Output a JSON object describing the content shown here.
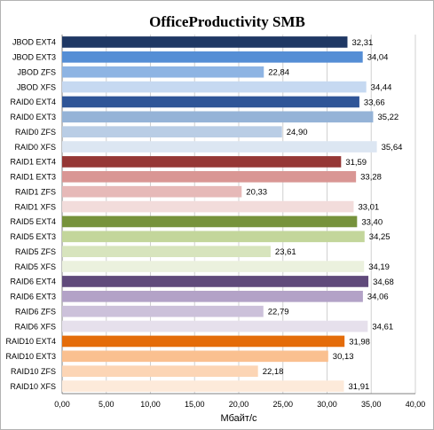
{
  "chart_data": {
    "type": "bar",
    "orientation": "horizontal",
    "title": "OfficeProductivity SMB",
    "xlabel": "Мбайт/с",
    "ylabel": "",
    "xlim": [
      0,
      40
    ],
    "x_ticks": [
      "0,00",
      "5,00",
      "10,00",
      "15,00",
      "20,00",
      "25,00",
      "30,00",
      "35,00",
      "40,00"
    ],
    "grid": true,
    "legend": "none",
    "categories": [
      "JBOD EXT4",
      "JBOD EXT3",
      "JBOD ZFS",
      "JBOD XFS",
      "RAID0 EXT4",
      "RAID0 EXT3",
      "RAID0 ZFS",
      "RAID0 XFS",
      "RAID1 EXT4",
      "RAID1 EXT3",
      "RAID1 ZFS",
      "RAID1 XFS",
      "RAID5 EXT4",
      "RAID5 EXT3",
      "RAID5 ZFS",
      "RAID5 XFS",
      "RAID6 EXT4",
      "RAID6 EXT3",
      "RAID6 ZFS",
      "RAID6 XFS",
      "RAID10 EXT4",
      "RAID10 EXT3",
      "RAID10 ZFS",
      "RAID10 XFS"
    ],
    "values": [
      32.31,
      34.04,
      22.84,
      34.44,
      33.66,
      35.22,
      24.9,
      35.64,
      31.59,
      33.28,
      20.33,
      33.01,
      33.4,
      34.25,
      23.61,
      34.19,
      34.68,
      34.06,
      22.79,
      34.61,
      31.98,
      30.13,
      22.18,
      31.91
    ],
    "value_labels": [
      "32,31",
      "34,04",
      "22,84",
      "34,44",
      "33,66",
      "35,22",
      "24,90",
      "35,64",
      "31,59",
      "33,28",
      "20,33",
      "33,01",
      "33,40",
      "34,25",
      "23,61",
      "34,19",
      "34,68",
      "34,06",
      "22,79",
      "34,61",
      "31,98",
      "30,13",
      "22,18",
      "31,91"
    ],
    "colors": [
      "#1f3864",
      "#558ed5",
      "#8eb4e3",
      "#c6d9f1",
      "#2f5597",
      "#95b3d7",
      "#b9cde5",
      "#dce6f2",
      "#953735",
      "#d99694",
      "#e6b9b8",
      "#f2dcdb",
      "#76923c",
      "#c3d69b",
      "#d7e4bd",
      "#ebf1de",
      "#604a7b",
      "#b3a2c7",
      "#ccc1da",
      "#e6e0ec",
      "#e46c0a",
      "#fac090",
      "#fcd5b5",
      "#fdeada"
    ]
  }
}
